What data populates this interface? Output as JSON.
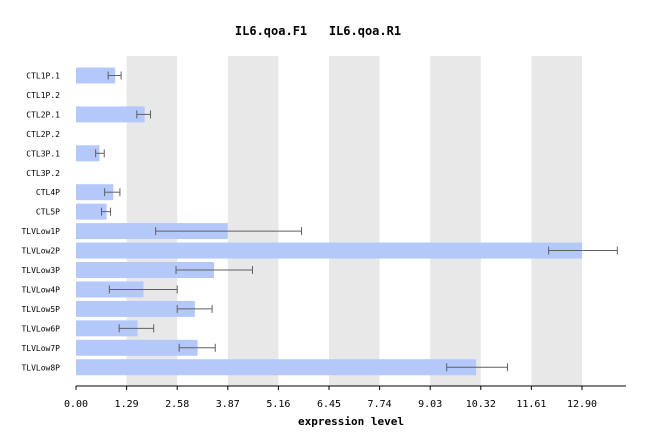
{
  "chart_data": {
    "type": "bar",
    "orientation": "horizontal",
    "title": "IL6.qoa.F1   IL6.qoa.R1",
    "xlabel": "expression level",
    "ylabel": "",
    "xlim": [
      0,
      14.2
    ],
    "x_ticks": [
      "0.00",
      "1.29",
      "2.58",
      "3.87",
      "5.16",
      "6.45",
      "7.74",
      "9.03",
      "10.32",
      "11.61",
      "12.90"
    ],
    "x_tick_values": [
      0,
      1.29,
      2.58,
      3.87,
      5.16,
      6.45,
      7.74,
      9.03,
      10.32,
      11.61,
      12.9
    ],
    "grid": "alternating vertical bands",
    "categories": [
      "CTL1P.1",
      "CTL1P.2",
      "CTL2P.1",
      "CTL2P.2",
      "CTL3P.1",
      "CTL3P.2",
      "CTL4P",
      "CTL5P",
      "TLVLow1P",
      "TLVLow2P",
      "TLVLow3P",
      "TLVLow4P",
      "TLVLow5P",
      "TLVLow6P",
      "TLVLow7P",
      "TLVLow8P"
    ],
    "values": [
      1.0,
      0.0,
      1.75,
      0.0,
      0.6,
      0.0,
      0.95,
      0.78,
      3.87,
      12.9,
      3.52,
      1.72,
      3.03,
      1.57,
      3.1,
      10.2
    ],
    "error_low": [
      0.82,
      null,
      1.55,
      null,
      0.5,
      null,
      0.73,
      0.65,
      2.03,
      12.05,
      2.55,
      0.85,
      2.58,
      1.1,
      2.63,
      9.45
    ],
    "error_high": [
      1.15,
      null,
      1.9,
      null,
      0.72,
      null,
      1.12,
      0.88,
      5.75,
      13.8,
      4.5,
      2.58,
      3.47,
      1.98,
      3.55,
      11.0
    ],
    "colors": {
      "bar": "#b4c8fa",
      "band": "#e8e8e8",
      "error": "#606060",
      "axis": "#000000"
    }
  }
}
